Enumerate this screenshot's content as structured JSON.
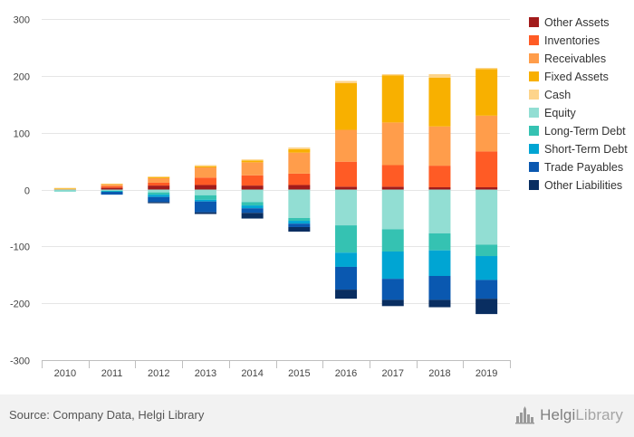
{
  "chart_data": {
    "type": "bar",
    "stacked": true,
    "categories": [
      "2010",
      "2011",
      "2012",
      "2013",
      "2014",
      "2015",
      "2016",
      "2017",
      "2018",
      "2019"
    ],
    "ylim": [
      -300,
      300
    ],
    "yticks": [
      300,
      200,
      100,
      0,
      -100,
      -200,
      -300
    ],
    "grid": true,
    "legend_position": "right",
    "series": [
      {
        "name": "Other Assets",
        "color": "#a21b1b",
        "values": [
          0,
          3,
          7,
          8,
          7,
          8,
          5,
          5,
          4,
          4
        ]
      },
      {
        "name": "Inventories",
        "color": "#ff5b25",
        "values": [
          0.5,
          3,
          5,
          13,
          18,
          20,
          44,
          38,
          38,
          63
        ]
      },
      {
        "name": "Receivables",
        "color": "#ff9d4b",
        "values": [
          1,
          3,
          8,
          18,
          23,
          37,
          56,
          75,
          69,
          63
        ]
      },
      {
        "name": "Fixed Assets",
        "color": "#f8b000",
        "values": [
          0.5,
          1,
          2,
          2,
          3,
          6,
          82,
          83,
          86,
          82
        ]
      },
      {
        "name": "Cash",
        "color": "#fdd48b",
        "values": [
          1,
          0.5,
          1,
          2,
          2,
          3,
          4,
          2,
          6,
          2
        ]
      },
      {
        "name": "Equity",
        "color": "#92ded3",
        "values": [
          -2,
          -2,
          -5,
          -10,
          -22,
          -50,
          -63,
          -70,
          -77,
          -97
        ]
      },
      {
        "name": "Long-Term Debt",
        "color": "#35c2b2",
        "values": [
          -0.5,
          -1,
          -4,
          -8,
          -6,
          -5,
          -48,
          -39,
          -30,
          -20
        ]
      },
      {
        "name": "Short-Term Debt",
        "color": "#00a5d3",
        "values": [
          0,
          -1,
          -4,
          -3,
          -5,
          -5,
          -25,
          -48,
          -45,
          -42
        ]
      },
      {
        "name": "Trade Payables",
        "color": "#0a58b0",
        "values": [
          0,
          -5,
          -9,
          -19,
          -8,
          -6,
          -40,
          -37,
          -42,
          -33
        ]
      },
      {
        "name": "Other Liabilities",
        "color": "#092e61",
        "values": [
          0,
          0,
          -2,
          -3,
          -10,
          -8,
          -16,
          -11,
          -13,
          -27
        ]
      }
    ]
  },
  "footer": {
    "source": "Source: Company Data, Helgi Library",
    "brand_main": "Helgi",
    "brand_light": "Library"
  }
}
